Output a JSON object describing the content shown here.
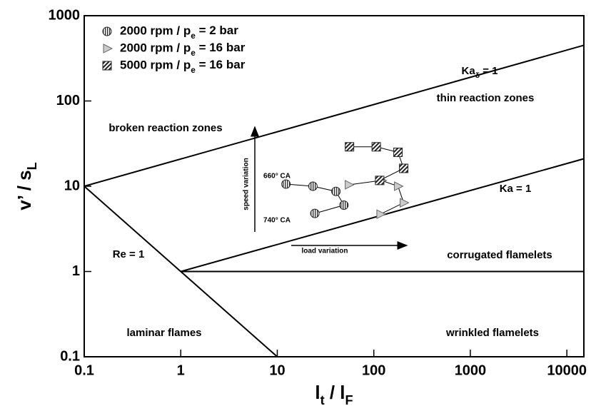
{
  "chart_data": {
    "type": "scatter",
    "x_label": "l_t / l_F",
    "y_label": "v’ / s_L",
    "xlim": [
      0.1,
      15000
    ],
    "ylim": [
      0.1,
      1000
    ],
    "xticks": [
      0.1,
      1,
      10,
      100,
      1000,
      10000
    ],
    "yticks": [
      0.1,
      1,
      10,
      100,
      1000
    ],
    "log_x": true,
    "log_y": true,
    "legend": "upper left",
    "series": [
      {
        "name": "2000 rpm / p_e = 2 bar",
        "marker": "circle",
        "color": "#999999",
        "x": [
          12.3,
          23.4,
          40.5,
          49,
          24.5
        ],
        "values": [
          10.6,
          10,
          8.7,
          6.0,
          4.8
        ]
      },
      {
        "name": "2000 rpm / p_e = 16 bar",
        "marker": "triangle",
        "color": "#aaaaaa",
        "x": [
          55,
          120,
          178,
          204,
          117
        ],
        "values": [
          10.4,
          11.7,
          10,
          6.4,
          4.7
        ]
      },
      {
        "name": "5000 rpm / p_e = 16 bar",
        "marker": "square",
        "color": "#555555",
        "x": [
          56,
          106,
          178,
          204,
          115
        ],
        "values": [
          29,
          29,
          25,
          16.2,
          11.7
        ]
      }
    ],
    "lines": [
      {
        "x": [
          0.1,
          15000
        ],
        "values": [
          10,
          450
        ]
      },
      {
        "x": [
          1,
          15000
        ],
        "values": [
          1,
          21
        ]
      },
      {
        "x": [
          1,
          15000
        ],
        "values": [
          1,
          1
        ]
      },
      {
        "x": [
          0.1,
          10
        ],
        "values": [
          10,
          0.1
        ]
      }
    ],
    "annotations": [
      "broken reaction zones",
      "thin reaction zones",
      "Ka_δ = 1",
      "Ka = 1",
      "corrugated flamelets",
      "wrinkled flamelets",
      "laminar flames",
      "Re = 1",
      "660° CA",
      "740° CA",
      "speed variation",
      "load variation"
    ]
  }
}
